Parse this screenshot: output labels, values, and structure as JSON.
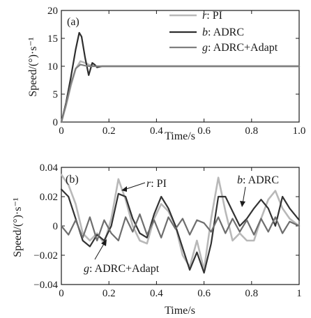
{
  "chart_data": [
    {
      "type": "line",
      "panel_label": "(a)",
      "xlabel": "Time/s",
      "ylabel": "Speed/(°)·s⁻¹",
      "xlim": [
        0,
        1.0
      ],
      "ylim": [
        0,
        20
      ],
      "xticks": [
        "0",
        "0.2",
        "0.4",
        "0.6",
        "0.8",
        "1.0"
      ],
      "xtick_values": [
        0,
        0.2,
        0.4,
        0.6,
        0.8,
        1.0
      ],
      "yticks": [
        "0",
        "5",
        "10",
        "15",
        "20"
      ],
      "ytick_values": [
        0,
        5,
        10,
        15,
        20
      ],
      "legend_position": "top-right",
      "series": [
        {
          "name": "PI",
          "legend_prefix": "r",
          "color": "#b8b8b8",
          "width": 2.6,
          "x": [
            0,
            0.02,
            0.04,
            0.06,
            0.08,
            0.1,
            0.12,
            0.15,
            0.2,
            0.3,
            1.0
          ],
          "y": [
            0,
            3,
            6.5,
            9.5,
            10.9,
            10.6,
            10.2,
            10.0,
            10.0,
            10.0,
            10.0
          ]
        },
        {
          "name": "ADRC",
          "legend_prefix": "b",
          "color": "#2e2e2e",
          "width": 2.2,
          "x": [
            0,
            0.02,
            0.04,
            0.06,
            0.075,
            0.085,
            0.1,
            0.115,
            0.13,
            0.14,
            0.15,
            0.17,
            0.2,
            1.0
          ],
          "y": [
            0,
            3.5,
            8,
            13,
            16.0,
            15.3,
            11.5,
            8.4,
            10.6,
            10.3,
            9.8,
            10.0,
            10.0,
            10.0
          ]
        },
        {
          "name": "ADRC+Adapt",
          "legend_prefix": "g",
          "color": "#7f7f7f",
          "width": 2.2,
          "x": [
            0,
            0.02,
            0.04,
            0.06,
            0.08,
            0.1,
            0.12,
            0.15,
            1.0
          ],
          "y": [
            0,
            3.2,
            6.8,
            9.6,
            10.3,
            10.1,
            10.0,
            10.0,
            10.0
          ]
        }
      ]
    },
    {
      "type": "line",
      "panel_label": "(b)",
      "xlabel": "Time/s",
      "ylabel": "Speed/(°)·s⁻¹",
      "xlim": [
        0,
        1
      ],
      "ylim": [
        -0.04,
        0.04
      ],
      "xticks": [
        "0",
        "0.2",
        "0.4",
        "0.6",
        "0.8",
        "1"
      ],
      "xtick_values": [
        0,
        0.2,
        0.4,
        0.6,
        0.8,
        1
      ],
      "yticks": [
        "−0.04",
        "−0.02",
        "0",
        "0.02",
        "0.04"
      ],
      "ytick_values": [
        -0.04,
        -0.02,
        0,
        0.02,
        0.04
      ],
      "annotations": [
        {
          "prefix": "r",
          "text": ": PI",
          "series": "PI"
        },
        {
          "prefix": "b",
          "text": ": ADRC",
          "series": "ADRC"
        },
        {
          "prefix": "g",
          "text": ": ADRC+Adapt",
          "series": "ADRC+Adapt"
        }
      ],
      "series": [
        {
          "name": "PI",
          "color": "#b8b8b8",
          "width": 2.6,
          "x": [
            0,
            0.03,
            0.06,
            0.09,
            0.12,
            0.15,
            0.18,
            0.21,
            0.24,
            0.27,
            0.3,
            0.33,
            0.36,
            0.39,
            0.42,
            0.45,
            0.48,
            0.51,
            0.54,
            0.57,
            0.6,
            0.63,
            0.66,
            0.69,
            0.72,
            0.75,
            0.78,
            0.81,
            0.84,
            0.87,
            0.9,
            0.93,
            0.96,
            1.0
          ],
          "y": [
            0.035,
            0.028,
            0.015,
            -0.005,
            -0.01,
            -0.005,
            -0.012,
            0.005,
            0.032,
            0.018,
            0.0,
            -0.01,
            -0.012,
            0.005,
            0.015,
            0.01,
            0.0,
            -0.02,
            -0.028,
            -0.01,
            -0.03,
            0.005,
            0.033,
            0.01,
            -0.01,
            -0.005,
            -0.01,
            -0.01,
            0.005,
            0.018,
            0.024,
            0.012,
            0.005,
            0.0
          ]
        },
        {
          "name": "ADRC",
          "color": "#333333",
          "width": 2.2,
          "x": [
            0,
            0.03,
            0.06,
            0.09,
            0.12,
            0.15,
            0.18,
            0.21,
            0.24,
            0.27,
            0.3,
            0.33,
            0.36,
            0.39,
            0.42,
            0.45,
            0.48,
            0.51,
            0.54,
            0.57,
            0.6,
            0.63,
            0.66,
            0.69,
            0.72,
            0.75,
            0.78,
            0.81,
            0.84,
            0.87,
            0.9,
            0.93,
            0.96,
            1.0
          ],
          "y": [
            0.025,
            0.02,
            0.005,
            -0.01,
            -0.014,
            -0.006,
            -0.01,
            0.0,
            0.022,
            0.02,
            0.005,
            -0.005,
            -0.008,
            0.008,
            0.02,
            0.012,
            0.0,
            -0.015,
            -0.03,
            -0.018,
            -0.032,
            -0.012,
            0.02,
            0.02,
            0.01,
            0.0,
            0.005,
            0.012,
            0.018,
            0.012,
            0.0,
            0.02,
            0.012,
            0.004
          ]
        },
        {
          "name": "ADRC+Adapt",
          "color": "#6e6e6e",
          "width": 2.2,
          "x": [
            0,
            0.03,
            0.06,
            0.09,
            0.12,
            0.15,
            0.18,
            0.21,
            0.24,
            0.27,
            0.3,
            0.33,
            0.36,
            0.39,
            0.42,
            0.45,
            0.48,
            0.51,
            0.54,
            0.57,
            0.6,
            0.63,
            0.66,
            0.69,
            0.72,
            0.75,
            0.78,
            0.81,
            0.84,
            0.87,
            0.9,
            0.93,
            0.96,
            1.0
          ],
          "y": [
            0.0,
            -0.006,
            0.004,
            -0.008,
            0.006,
            -0.01,
            0.004,
            -0.005,
            -0.01,
            0.006,
            -0.004,
            0.008,
            -0.006,
            0.004,
            -0.008,
            0.006,
            -0.002,
            0.005,
            -0.006,
            0.004,
            0.002,
            -0.004,
            0.006,
            -0.005,
            0.005,
            -0.004,
            0.004,
            -0.006,
            0.005,
            -0.004,
            0.006,
            -0.005,
            0.003,
            0.0
          ]
        }
      ]
    }
  ]
}
